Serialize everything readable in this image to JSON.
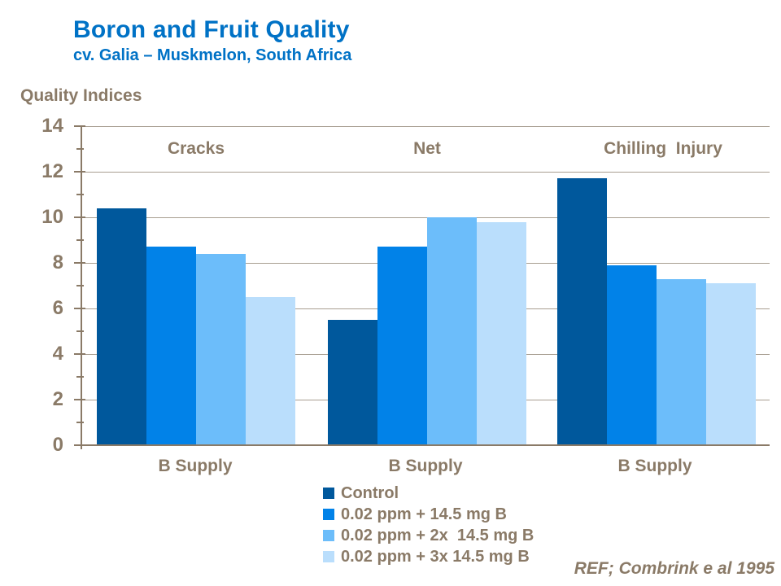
{
  "slide": {
    "title": "Boron and Fruit Quality",
    "subtitle": "cv. Galia – Muskmelon, South Africa",
    "reference": "REF; Combrink e al 1995"
  },
  "chart_data": {
    "type": "bar",
    "title": "Quality Indices",
    "groups": [
      "Cracks",
      "Net",
      "Chilling  Injury"
    ],
    "x_axis_labels": [
      "B Supply",
      "B Supply",
      "B Supply"
    ],
    "series": [
      {
        "name": "Control",
        "color": "#00589C",
        "values": [
          10.4,
          5.5,
          11.7
        ]
      },
      {
        "name": "0.02 ppm + 14.5 mg B",
        "color": "#0182E8",
        "values": [
          8.7,
          8.7,
          7.9
        ]
      },
      {
        "name": "0.02 ppm + 2x  14.5 mg B",
        "color": "#6CBDFA",
        "values": [
          8.4,
          10.0,
          7.3
        ]
      },
      {
        "name": "0.02 ppm + 3x 14.5 mg B",
        "color": "#BADEFC",
        "values": [
          6.5,
          9.8,
          7.1
        ]
      }
    ],
    "ylim": [
      0,
      14
    ],
    "yticks": [
      0,
      2,
      4,
      6,
      8,
      10,
      12,
      14
    ],
    "minor_tick_step": 1,
    "grid": true,
    "legend_position": "bottom-center",
    "colors": {
      "title_blue": "#0072C6",
      "text_brown": "#8A7A67",
      "gridline": "#A89E91",
      "axis": "#8A7A67",
      "background": "#FFFFFF"
    }
  }
}
